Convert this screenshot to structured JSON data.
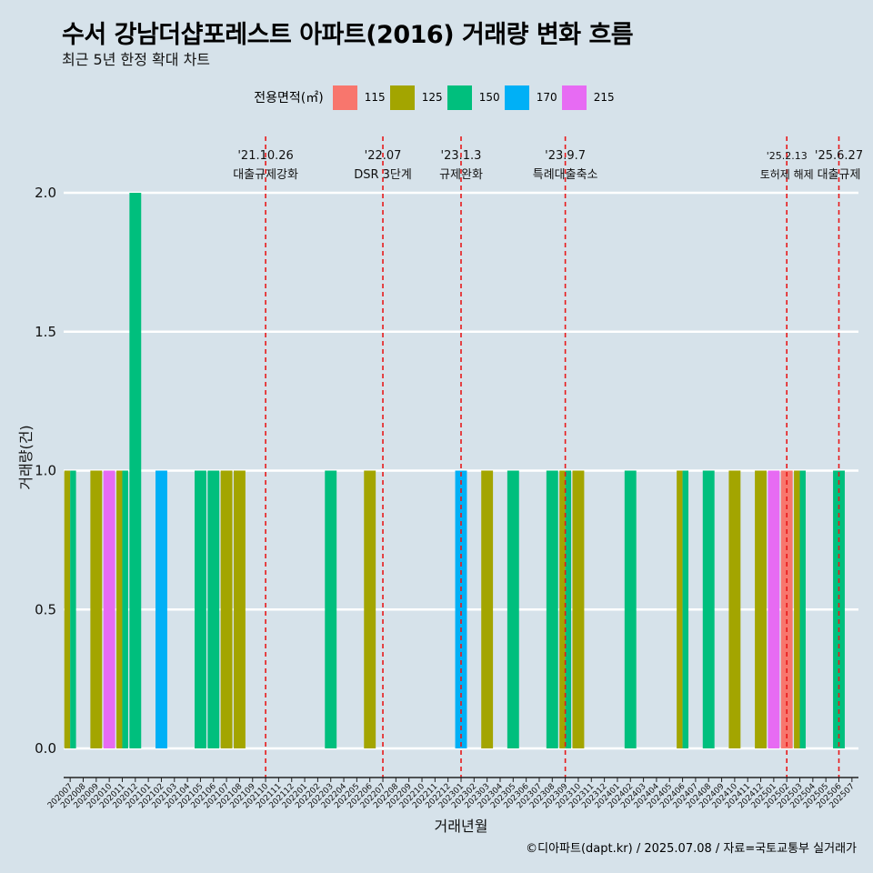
{
  "title": "수서 강남더샵포레스트 아파트(2016) 거래량 변화 흐름",
  "subtitle": "최근 5년 한정 확대 차트",
  "footer": "©디아파트(dapt.kr) / 2025.07.08 / 자료=국토교통부 실거래가",
  "legend": {
    "title": "전용면적(㎡)",
    "items": [
      {
        "label": "115",
        "color": "#f8766d"
      },
      {
        "label": "125",
        "color": "#a3a500"
      },
      {
        "label": "150",
        "color": "#00bf7d"
      },
      {
        "label": "170",
        "color": "#00b0f6"
      },
      {
        "label": "215",
        "color": "#e76bf3"
      }
    ]
  },
  "chart_data": {
    "type": "bar",
    "xlabel": "거래년월",
    "ylabel": "거래량(건)",
    "ylim": [
      0,
      2
    ],
    "yticks": [
      0.0,
      0.5,
      1.0,
      1.5,
      2.0
    ],
    "categories": [
      "202007",
      "202008",
      "202009",
      "202010",
      "202011",
      "202012",
      "202101",
      "202102",
      "202103",
      "202104",
      "202105",
      "202106",
      "202107",
      "202108",
      "202109",
      "202110",
      "202111",
      "202112",
      "202201",
      "202202",
      "202203",
      "202204",
      "202205",
      "202206",
      "202207",
      "202208",
      "202209",
      "202210",
      "202211",
      "202212",
      "202301",
      "202302",
      "202303",
      "202304",
      "202305",
      "202306",
      "202307",
      "202308",
      "202309",
      "202310",
      "202311",
      "202312",
      "202401",
      "202402",
      "202403",
      "202404",
      "202405",
      "202406",
      "202407",
      "202408",
      "202409",
      "202410",
      "202411",
      "202412",
      "202501",
      "202502",
      "202503",
      "202504",
      "202505",
      "202506",
      "202507"
    ],
    "bars": [
      {
        "month": "202007",
        "area": "125",
        "value": 1
      },
      {
        "month": "202007",
        "area": "150",
        "value": 1
      },
      {
        "month": "202009",
        "area": "125",
        "value": 1
      },
      {
        "month": "202010",
        "area": "215",
        "value": 1
      },
      {
        "month": "202011",
        "area": "125",
        "value": 1
      },
      {
        "month": "202011",
        "area": "150",
        "value": 1
      },
      {
        "month": "202012",
        "area": "150",
        "value": 2
      },
      {
        "month": "202102",
        "area": "170",
        "value": 1
      },
      {
        "month": "202105",
        "area": "150",
        "value": 1
      },
      {
        "month": "202106",
        "area": "150",
        "value": 1
      },
      {
        "month": "202107",
        "area": "125",
        "value": 1
      },
      {
        "month": "202108",
        "area": "125",
        "value": 1
      },
      {
        "month": "202203",
        "area": "150",
        "value": 1
      },
      {
        "month": "202206",
        "area": "125",
        "value": 1
      },
      {
        "month": "202301",
        "area": "170",
        "value": 1
      },
      {
        "month": "202303",
        "area": "125",
        "value": 1
      },
      {
        "month": "202305",
        "area": "150",
        "value": 1
      },
      {
        "month": "202308",
        "area": "150",
        "value": 1
      },
      {
        "month": "202309",
        "area": "125",
        "value": 1
      },
      {
        "month": "202309",
        "area": "150",
        "value": 1
      },
      {
        "month": "202310",
        "area": "125",
        "value": 1
      },
      {
        "month": "202402",
        "area": "150",
        "value": 1
      },
      {
        "month": "202406",
        "area": "125",
        "value": 1
      },
      {
        "month": "202406",
        "area": "150",
        "value": 1
      },
      {
        "month": "202408",
        "area": "150",
        "value": 1
      },
      {
        "month": "202410",
        "area": "125",
        "value": 1
      },
      {
        "month": "202412",
        "area": "125",
        "value": 1
      },
      {
        "month": "202501",
        "area": "215",
        "value": 1
      },
      {
        "month": "202502",
        "area": "115",
        "value": 1
      },
      {
        "month": "202503",
        "area": "125",
        "value": 1
      },
      {
        "month": "202503",
        "area": "150",
        "value": 1
      },
      {
        "month": "202506",
        "area": "150",
        "value": 1
      }
    ],
    "events": [
      {
        "x": "202110",
        "date": "'21.10.26",
        "label": "대출규제강화"
      },
      {
        "x": "202207",
        "date": "'22.07",
        "label": "DSR 3단계"
      },
      {
        "x": "202301",
        "date": "'23.1.3",
        "label": "규제완화"
      },
      {
        "x": "202309",
        "date": "'23.9.7",
        "label": "특례대출축소"
      },
      {
        "x": "202502",
        "date": "'25.2.13",
        "label": "토허제 해제"
      },
      {
        "x": "202506",
        "date": "'25.6.27",
        "label": "대출규제"
      }
    ],
    "grid": true,
    "legend_position": "top"
  }
}
